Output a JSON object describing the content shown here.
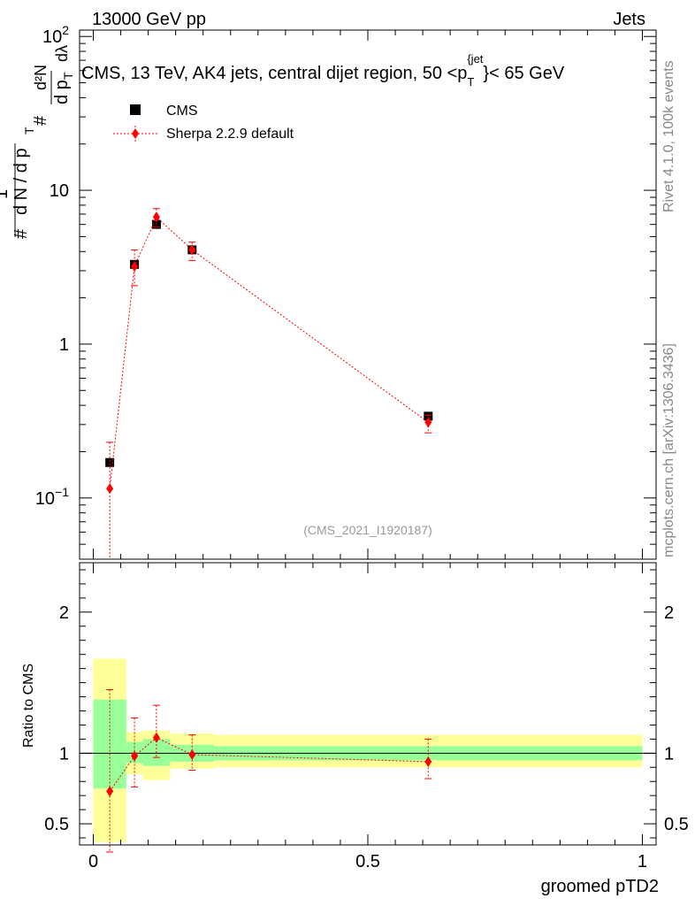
{
  "header": {
    "energy_label": "13000 GeV pp",
    "category_label": "Jets"
  },
  "side_labels": {
    "rivet": "Rivet 4.1.0,  100k events",
    "mcplots": "mcplots.cern.ch [arXiv:1306.3436]"
  },
  "chart_data": [
    {
      "type": "scatter",
      "title": "CMS, 13 TeV, AK4 jets, central dijet region, 50 <p_T^{jet}< 65 GeV",
      "title_parts": {
        "prefix": "CMS, 13 TeV, AK4 jets, central dijet region, 50 <p",
        "sub": "T",
        "sup": "{jet",
        "suffix": "}< 65 GeV"
      },
      "watermark": "(CMS_2021_I1920187)",
      "ylabel_parts": {
        "hash1": "#",
        "one": "1",
        "dN": "d N / d p",
        "T": "T",
        "hash2": "#",
        "dpT": "d p",
        "d2N": "d²N",
        "dlambda": "dλ"
      },
      "yscale": "log",
      "ylim": [
        0.04,
        110
      ],
      "xlim": [
        -0.025,
        1.025
      ],
      "ytick_labels": [
        {
          "value": 0.1,
          "base": "10",
          "exp": "−1"
        },
        {
          "value": 1,
          "base": "1",
          "exp": ""
        },
        {
          "value": 10,
          "base": "10",
          "exp": ""
        },
        {
          "value": 100,
          "base": "10",
          "exp": "2"
        }
      ],
      "legend": [
        {
          "name": "CMS",
          "marker": "square",
          "color": "#000000"
        },
        {
          "name": "Sherpa 2.2.9 default",
          "marker": "diamond",
          "color": "#ff0000"
        }
      ],
      "series": [
        {
          "name": "CMS",
          "x": [
            0.03,
            0.075,
            0.115,
            0.18,
            0.61
          ],
          "y": [
            0.17,
            3.3,
            6.0,
            4.1,
            0.34
          ],
          "xerr": [
            0.03,
            0.015,
            0.025,
            0.04,
            0.39
          ],
          "yerr_up": [
            0.01,
            0.1,
            0.15,
            0.12,
            0.01
          ],
          "yerr_down": [
            0.01,
            0.1,
            0.15,
            0.12,
            0.01
          ]
        },
        {
          "name": "Sherpa 2.2.9 default",
          "x": [
            0.03,
            0.075,
            0.115,
            0.18,
            0.61
          ],
          "y": [
            0.115,
            3.2,
            6.7,
            4.1,
            0.31
          ],
          "yerr_up": [
            0.23,
            4.1,
            7.6,
            4.6,
            0.345
          ],
          "yerr_down": [
            0.035,
            2.4,
            5.8,
            3.5,
            0.265
          ]
        }
      ]
    },
    {
      "type": "scatter",
      "ylabel": "Ratio to CMS",
      "xlabel": "groomed pTD2",
      "ylim": [
        0.35,
        2.35
      ],
      "xlim": [
        -0.025,
        1.025
      ],
      "yticks": [
        0.5,
        1,
        2
      ],
      "ytick_labels": [
        "0.5",
        "1",
        "2"
      ],
      "xticks": [
        0,
        0.5,
        1
      ],
      "xtick_labels": [
        "0",
        "0.5",
        "1"
      ],
      "bands": {
        "bin_edges": [
          0,
          0.06,
          0.09,
          0.14,
          0.22,
          1.0
        ],
        "stat_lo": [
          0.75,
          0.93,
          0.91,
          0.94,
          0.95
        ],
        "stat_hi": [
          1.38,
          1.08,
          1.1,
          1.06,
          1.05
        ],
        "tot_lo": [
          0.37,
          0.85,
          0.81,
          0.89,
          0.9
        ],
        "tot_hi": [
          1.67,
          1.15,
          1.16,
          1.14,
          1.13
        ],
        "stat_color": "#99ff99",
        "tot_color": "#ffff99"
      },
      "series": [
        {
          "name": "Sherpa 2.2.9 default",
          "x": [
            0.03,
            0.075,
            0.115,
            0.18,
            0.61
          ],
          "y": [
            0.73,
            0.98,
            1.11,
            0.99,
            0.94
          ],
          "yerr_up": [
            1.45,
            1.25,
            1.34,
            1.13,
            1.1
          ],
          "yerr_down": [
            0.3,
            0.76,
            0.97,
            0.88,
            0.82
          ]
        }
      ]
    }
  ]
}
